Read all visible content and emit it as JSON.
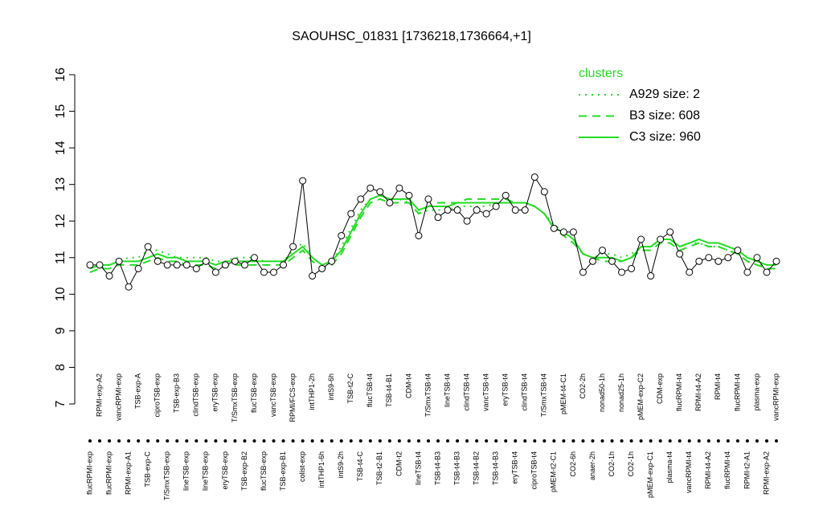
{
  "chart_data": {
    "type": "line",
    "title": "SAOUHSC_01831 [1736218,1736664,+1]",
    "categories": [
      "flucRPMI-exp",
      "RPMI-exp-A2",
      "flucRPMI-exp",
      "vancRPMI-exp",
      "RPMI-exp-A1",
      "TSB-exp-A",
      "TSB-exp-C",
      "ciproTSB-exp",
      "T/SmxTSB-exp",
      "TSB-exp-B3",
      "lineTSB-exp",
      "clindTSB-exp",
      "lineTSB-exp",
      "eryTSB-exp",
      "eryTSB-exp",
      "T/SmxTSB-exp",
      "TSB-exp-B2",
      "flucTSB-exp",
      "flucTSB-exp",
      "vancTSB-exp",
      "TSB-exp-B1",
      "RPMI/FCS-exp",
      "colist-exp",
      "intTHP1-2h",
      "intTHP1-6h",
      "intS9-6h",
      "intS9-2h",
      "TSB-t2-C",
      "TSB-t4-C",
      "flucTSB-t4",
      "TSB-t2-B1",
      "TSB-t4-B1",
      "CDM-t2",
      "CDM-t4",
      "lineTSB-t4",
      "T/SmxTSB-t4",
      "TSB-t4-B3",
      "lineTSB-t4",
      "TSB-t4-B3",
      "clindTSB-t4",
      "TSB-t4-B2",
      "vancTSB-t4",
      "TSB-t4-B3",
      "eryTSB-t4",
      "eryTSB-t4",
      "clindTSB-t4",
      "ciproTSB-t4",
      "T/SmxTSB-t4",
      "pMEM-t2-C1",
      "pMEM-t4-C1",
      "CO2-6h",
      "CO2-2h",
      "anaer-2h",
      "nonad50-1h",
      "CO2-1h",
      "nonad25-1h",
      "CO2-1h",
      "pMEM-exp-C2",
      "pMEM-exp-C1",
      "CDM-exp",
      "plasma-t4",
      "flucRPMI-t4",
      "vancRPMI-t4",
      "RPMI-t4-A2",
      "RPMI-t4-A2",
      "RPMI-t4",
      "flucRPMI-t4",
      "flucRPMI-t4",
      "RPMI-t2-A1",
      "plasma-exp",
      "RPMI-exp-A2",
      "vancRPMI-exp"
    ],
    "values": [
      10.8,
      10.8,
      10.5,
      10.9,
      10.2,
      10.7,
      11.3,
      10.9,
      10.8,
      10.8,
      10.8,
      10.7,
      10.9,
      10.6,
      10.8,
      10.9,
      10.8,
      11.0,
      10.6,
      10.6,
      10.8,
      11.3,
      13.1,
      10.5,
      10.7,
      10.9,
      11.6,
      12.2,
      12.6,
      12.9,
      12.8,
      12.5,
      12.9,
      12.7,
      11.6,
      12.6,
      12.1,
      12.3,
      12.3,
      12.0,
      12.3,
      12.2,
      12.4,
      12.7,
      12.3,
      12.3,
      13.2,
      12.8,
      11.8,
      11.7,
      11.7,
      10.6,
      10.9,
      11.2,
      10.9,
      10.6,
      10.7,
      11.5,
      10.5,
      11.5,
      11.7,
      11.1,
      10.6,
      10.9,
      11.0,
      10.9,
      11.0,
      11.2,
      10.6,
      11.0,
      10.6,
      10.9
    ],
    "color": "#000000",
    "series": [
      {
        "name": "A929 size: 2",
        "color": "#22dd22",
        "style": "dotted",
        "values": [
          10.6,
          10.7,
          10.8,
          10.9,
          11.0,
          11.0,
          11.2,
          11.2,
          11.1,
          11.0,
          11.0,
          11.0,
          11.0,
          10.9,
          10.9,
          11.0,
          11.0,
          11.0,
          10.9,
          10.9,
          10.9,
          11.2,
          11.4,
          11.0,
          10.8,
          10.9,
          11.3,
          11.8,
          12.3,
          12.6,
          12.7,
          12.6,
          12.6,
          12.5,
          12.2,
          12.3,
          12.3,
          12.3,
          12.4,
          12.4,
          12.4,
          12.4,
          12.5,
          12.5,
          12.5,
          12.5,
          12.4,
          12.2,
          11.9,
          11.7,
          11.5,
          11.1,
          11.0,
          11.1,
          11.1,
          11.0,
          11.1,
          11.3,
          11.3,
          11.5,
          11.5,
          11.3,
          11.4,
          11.4,
          11.3,
          11.3,
          11.2,
          11.1,
          10.9,
          10.8,
          10.8,
          10.8
        ]
      },
      {
        "name": "B3 size: 608",
        "color": "#22dd22",
        "style": "dashed",
        "values": [
          10.6,
          10.7,
          10.7,
          10.8,
          10.8,
          10.8,
          10.9,
          11.0,
          10.9,
          10.9,
          10.8,
          10.8,
          10.8,
          10.7,
          10.8,
          10.8,
          10.8,
          10.8,
          10.8,
          10.8,
          10.8,
          11.0,
          11.2,
          10.9,
          10.7,
          10.8,
          11.1,
          11.6,
          12.1,
          12.5,
          12.6,
          12.5,
          12.5,
          12.5,
          12.2,
          12.4,
          12.5,
          12.5,
          12.5,
          12.6,
          12.6,
          12.6,
          12.6,
          12.6,
          12.5,
          12.5,
          12.4,
          12.2,
          11.8,
          11.6,
          11.4,
          11.1,
          11.0,
          10.9,
          10.9,
          10.9,
          11.0,
          11.2,
          11.2,
          11.4,
          11.4,
          11.2,
          11.3,
          11.4,
          11.3,
          11.3,
          11.2,
          11.1,
          10.9,
          10.8,
          10.7,
          10.7
        ]
      },
      {
        "name": "C3 size: 960",
        "color": "#22dd22",
        "style": "solid",
        "values": [
          10.7,
          10.8,
          10.8,
          10.9,
          10.9,
          10.9,
          11.0,
          11.1,
          11.0,
          11.0,
          10.9,
          10.9,
          10.9,
          10.8,
          10.9,
          10.9,
          10.9,
          10.9,
          10.9,
          10.9,
          10.9,
          11.1,
          11.3,
          11.0,
          10.8,
          10.9,
          11.2,
          11.7,
          12.2,
          12.6,
          12.7,
          12.6,
          12.6,
          12.6,
          12.3,
          12.4,
          12.4,
          12.4,
          12.5,
          12.5,
          12.5,
          12.5,
          12.5,
          12.5,
          12.5,
          12.5,
          12.4,
          12.2,
          11.8,
          11.7,
          11.5,
          11.1,
          11.0,
          11.0,
          11.0,
          10.9,
          11.0,
          11.3,
          11.3,
          11.5,
          11.5,
          11.3,
          11.4,
          11.5,
          11.4,
          11.4,
          11.3,
          11.2,
          11.0,
          10.9,
          10.8,
          10.8
        ]
      }
    ],
    "legend_title": "clusters",
    "legend": "top-right",
    "ylim": [
      7,
      16
    ],
    "yticks": [
      7,
      8,
      9,
      10,
      11,
      12,
      13,
      14,
      15,
      16
    ]
  }
}
